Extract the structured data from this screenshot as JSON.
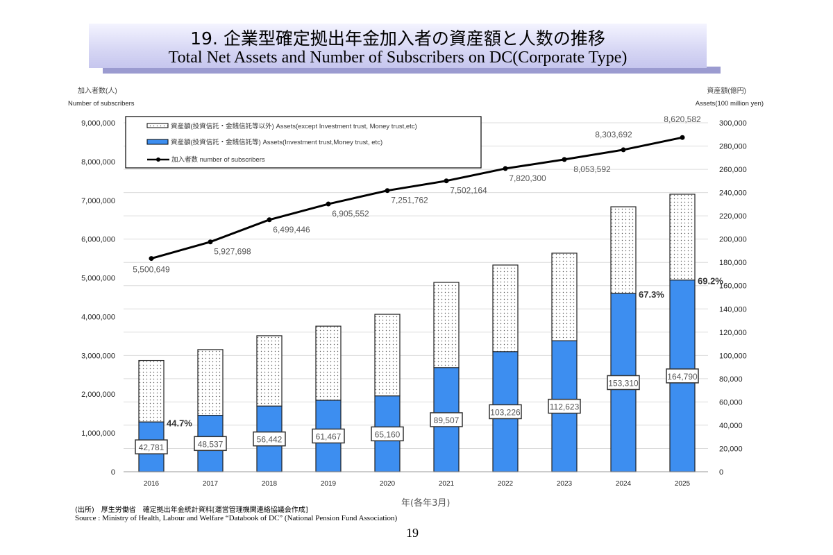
{
  "header": {
    "title_ja": "19. 企業型確定拠出年金加入者の資産額と人数の推移",
    "title_en": "Total Net Assets and Number of Subscribers on DC(Corporate Type)"
  },
  "chart_data": {
    "type": "bar+line",
    "categories": [
      "2016",
      "2017",
      "2018",
      "2019",
      "2020",
      "2021",
      "2022",
      "2023",
      "2024",
      "2025"
    ],
    "xlabel": "年(各年3月)",
    "ylabel_left": [
      "加入者数(人)",
      "Number of subscribers"
    ],
    "ylabel_right": [
      "資産額(億円)",
      "Assets(100 million yen)"
    ],
    "ylim_left": [
      0,
      9000000
    ],
    "ylim_right": [
      0,
      300000
    ],
    "yticks_left": [
      "0",
      "1,000,000",
      "2,000,000",
      "3,000,000",
      "4,000,000",
      "5,000,000",
      "6,000,000",
      "7,000,000",
      "8,000,000",
      "9,000,000"
    ],
    "yticks_right": [
      "0",
      "20,000",
      "40,000",
      "60,000",
      "80,000",
      "100,000",
      "120,000",
      "140,000",
      "160,000",
      "180,000",
      "200,000",
      "220,000",
      "240,000",
      "260,000",
      "280,000",
      "300,000"
    ],
    "grid": true,
    "legend_position": "top-left",
    "series": [
      {
        "name": "資産額(投資信託・金銭信託等) Assets(Investment trust,Money trust, etc)",
        "type": "stacked-bar",
        "axis": "right",
        "color": "#3d8ef0",
        "values": [
          42781,
          48537,
          56442,
          61467,
          65160,
          89507,
          103226,
          112623,
          153310,
          164790
        ],
        "labels": [
          "42,781",
          "48,537",
          "56,442",
          "61,467",
          "65,160",
          "89,507",
          "103,226",
          "112,623",
          "153,310",
          "164,790"
        ]
      },
      {
        "name": "資産額(投資信託・金銭信託等以外) Assets(except Investment trust, Money trust,etc)",
        "type": "stacked-bar",
        "axis": "right",
        "color": "#ffffff",
        "pattern": "dotted",
        "values": [
          52900,
          56500,
          60500,
          63700,
          70200,
          73300,
          74500,
          75300,
          74500,
          73800
        ]
      },
      {
        "name": "加入者数 number of subscribers",
        "type": "line",
        "axis": "left",
        "color": "#000000",
        "values": [
          5500649,
          5927698,
          6499446,
          6905552,
          7251762,
          7502164,
          7820300,
          8053592,
          8303692,
          8620582
        ],
        "labels": [
          "5,500,649",
          "5,927,698",
          "6,499,446",
          "6,905,552",
          "7,251,762",
          "7,502,164",
          "7,820,300",
          "8,053,592",
          "8,303,692",
          "8,620,582"
        ]
      }
    ],
    "annotations": [
      {
        "category": "2016",
        "text": "44.7%"
      },
      {
        "category": "2024",
        "text": "67.3%"
      },
      {
        "category": "2025",
        "text": "69.2%"
      }
    ]
  },
  "source": {
    "ja": "(出所)　厚生労働省　確定拠出年金統計資料[運営管理機関連絡協議会作成]",
    "en": "Source : Ministry of Health, Labour and  Welfare  “Databook of DC” (National Pension Fund Association)"
  },
  "page_number": "19"
}
